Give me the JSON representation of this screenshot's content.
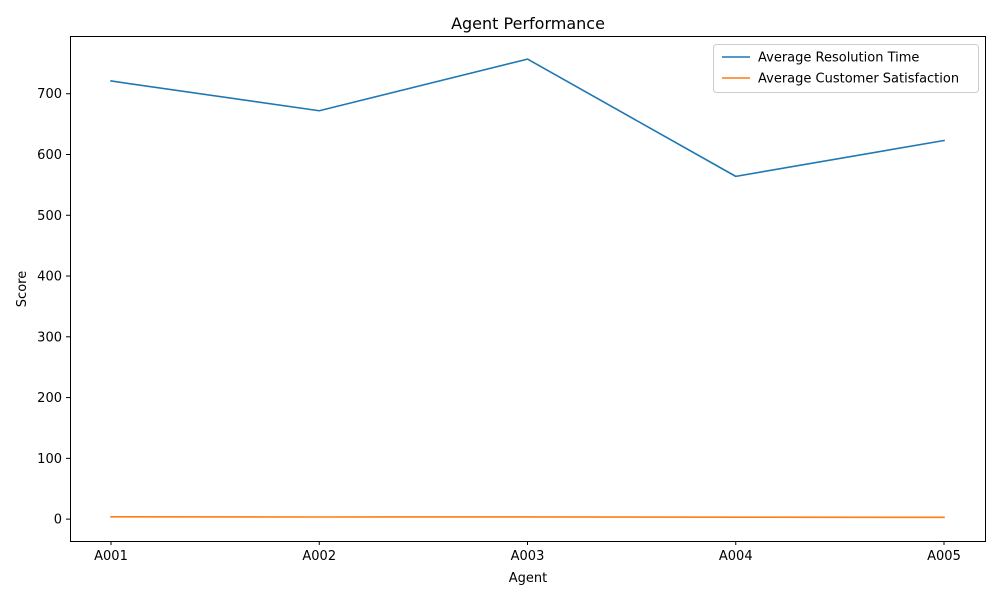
{
  "chart_data": {
    "type": "line",
    "title": "Agent Performance",
    "xlabel": "Agent",
    "ylabel": "Score",
    "categories": [
      "A001",
      "A002",
      "A003",
      "A004",
      "A005"
    ],
    "series": [
      {
        "name": "Average Resolution Time",
        "color": "#1f77b4",
        "values": [
          721,
          672,
          757,
          564,
          623
        ]
      },
      {
        "name": "Average Customer Satisfaction",
        "color": "#ff7f0e",
        "values": [
          3.8,
          3.5,
          3.6,
          3.2,
          2.9
        ]
      }
    ],
    "yticks": [
      0,
      100,
      200,
      300,
      400,
      500,
      600,
      700
    ],
    "ylim": [
      -36,
      795
    ],
    "grid": false,
    "legend": "top-right"
  }
}
